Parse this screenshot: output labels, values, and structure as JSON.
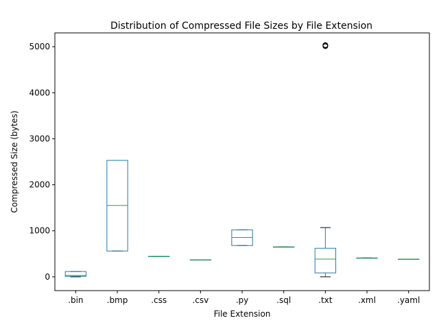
{
  "chart_data": {
    "type": "box",
    "title": "Distribution of Compressed File Sizes by File Extension",
    "xlabel": "File Extension",
    "ylabel": "Compressed Size (bytes)",
    "ylim": [
      -300,
      5300
    ],
    "yticks": [
      0,
      1000,
      2000,
      3000,
      4000,
      5000
    ],
    "grid": false,
    "colors": {
      "box": "#1f77b4",
      "median": "#2ca02c",
      "whisker": "#1f77b4",
      "cap": "#000000",
      "outlier": "#000000"
    },
    "boxes": [
      {
        "category": ".bin",
        "min": 0,
        "q1": 10,
        "median": 30,
        "q3": 115,
        "max": 115,
        "outliers": []
      },
      {
        "category": ".bmp",
        "min": 560,
        "q1": 560,
        "median": 1550,
        "q3": 2530,
        "max": 2530,
        "outliers": []
      },
      {
        "category": ".css",
        "min": 445,
        "q1": 445,
        "median": 445,
        "q3": 445,
        "max": 445,
        "outliers": []
      },
      {
        "category": ".csv",
        "min": 370,
        "q1": 370,
        "median": 370,
        "q3": 370,
        "max": 370,
        "outliers": []
      },
      {
        "category": ".py",
        "min": 680,
        "q1": 680,
        "median": 855,
        "q3": 1020,
        "max": 1020,
        "outliers": []
      },
      {
        "category": ".sql",
        "min": 650,
        "q1": 650,
        "median": 650,
        "q3": 650,
        "max": 650,
        "outliers": []
      },
      {
        "category": ".txt",
        "min": 0,
        "q1": 85,
        "median": 385,
        "q3": 620,
        "max": 1070,
        "outliers": [
          5025,
          5010,
          5035
        ]
      },
      {
        "category": ".xml",
        "min": 410,
        "q1": 410,
        "median": 410,
        "q3": 410,
        "max": 410,
        "outliers": []
      },
      {
        "category": ".yaml",
        "min": 385,
        "q1": 385,
        "median": 385,
        "q3": 385,
        "max": 385,
        "outliers": []
      }
    ]
  }
}
